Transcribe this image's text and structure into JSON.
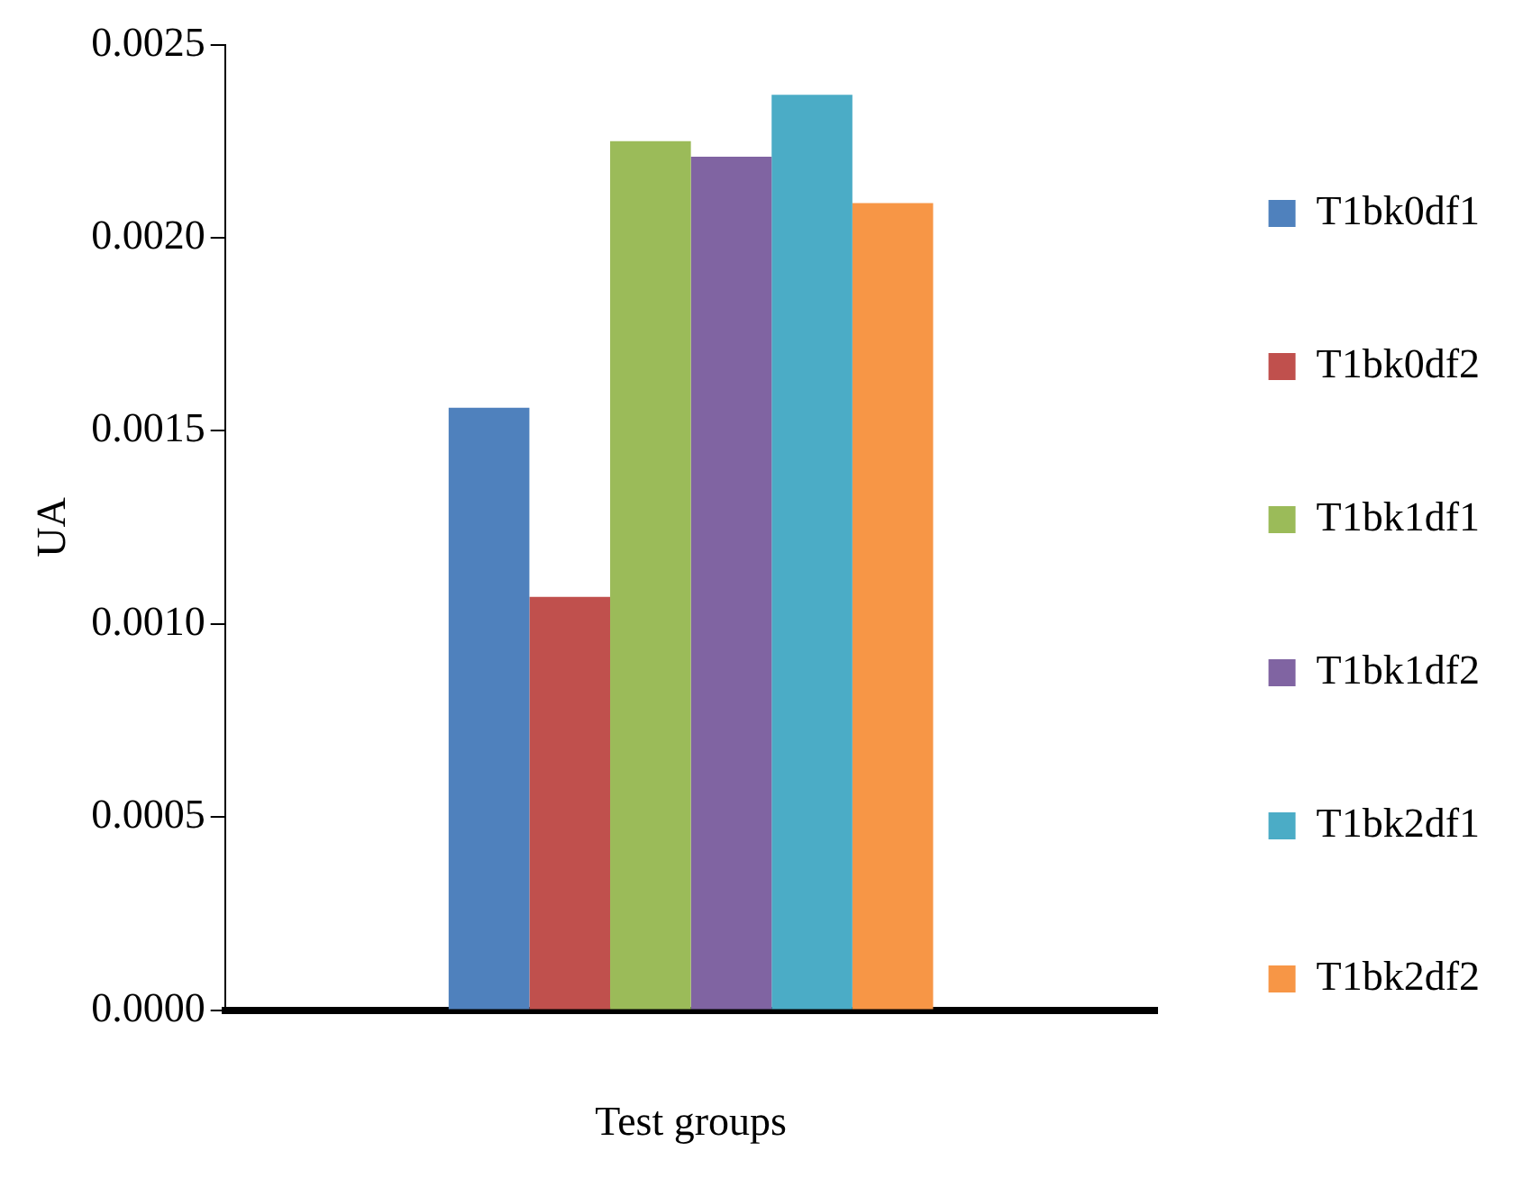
{
  "chart_data": {
    "type": "bar",
    "xlabel": "Test groups",
    "ylabel": "UA",
    "categories": [
      null
    ],
    "series": [
      {
        "name": "T1bk0df1",
        "color": "#4f81bd",
        "values": [
          0.00156
        ]
      },
      {
        "name": "T1bk0df2",
        "color": "#c0504d",
        "values": [
          0.00107
        ]
      },
      {
        "name": "T1bk1df1",
        "color": "#9bbb59",
        "values": [
          0.00225
        ]
      },
      {
        "name": "T1bk1df2",
        "color": "#8064a2",
        "values": [
          0.00221
        ]
      },
      {
        "name": "T1bk2df1",
        "color": "#4bacc6",
        "values": [
          0.00237
        ]
      },
      {
        "name": "T1bk2df2",
        "color": "#f79646",
        "values": [
          0.00209
        ]
      }
    ],
    "ylim": [
      0,
      0.0025
    ],
    "yticks": [
      {
        "value": 0,
        "label": "0.0000"
      },
      {
        "value": 0.0005,
        "label": "0.0005"
      },
      {
        "value": 0.001,
        "label": "0.0010"
      },
      {
        "value": 0.0015,
        "label": "0.0015"
      },
      {
        "value": 0.002,
        "label": "0.0020"
      },
      {
        "value": 0.0025,
        "label": "0.0025"
      }
    ],
    "legend": "right"
  }
}
